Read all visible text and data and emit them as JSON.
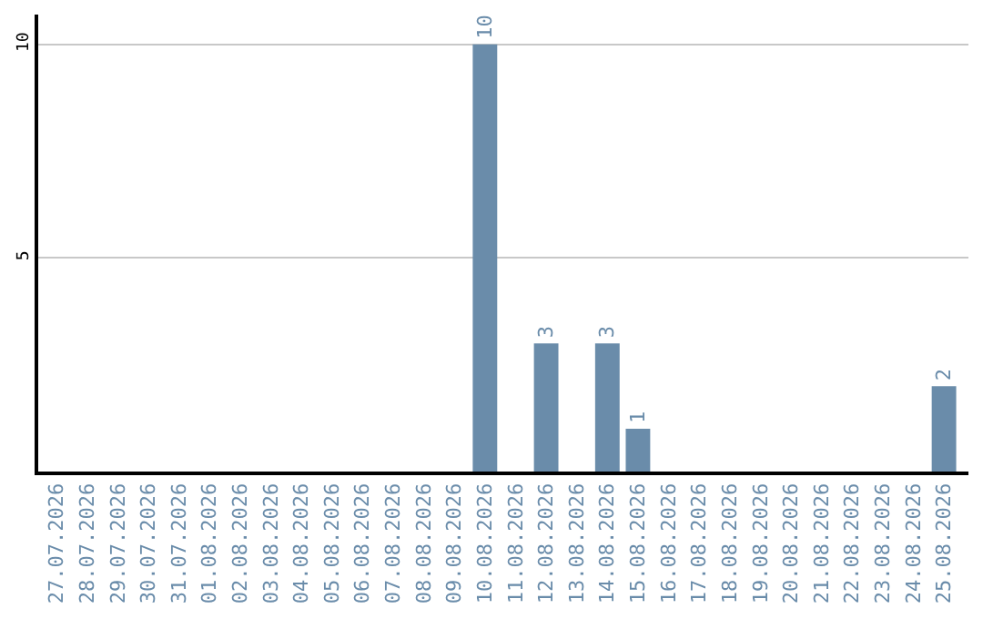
{
  "chart_data": {
    "type": "bar",
    "categories": [
      "27.07.2026",
      "28.07.2026",
      "29.07.2026",
      "30.07.2026",
      "31.07.2026",
      "01.08.2026",
      "02.08.2026",
      "03.08.2026",
      "04.08.2026",
      "05.08.2026",
      "06.08.2026",
      "07.08.2026",
      "08.08.2026",
      "09.08.2026",
      "10.08.2026",
      "11.08.2026",
      "12.08.2026",
      "13.08.2026",
      "14.08.2026",
      "15.08.2026",
      "16.08.2026",
      "17.08.2026",
      "18.08.2026",
      "19.08.2026",
      "20.08.2026",
      "21.08.2026",
      "22.08.2026",
      "23.08.2026",
      "24.08.2026",
      "25.08.2026"
    ],
    "values": [
      0,
      0,
      0,
      0,
      0,
      0,
      0,
      0,
      0,
      0,
      0,
      0,
      0,
      0,
      10,
      0,
      3,
      0,
      3,
      1,
      0,
      0,
      0,
      0,
      0,
      0,
      0,
      0,
      0,
      2
    ],
    "value_labels": [
      null,
      null,
      null,
      null,
      null,
      null,
      null,
      null,
      null,
      null,
      null,
      null,
      null,
      null,
      "10",
      null,
      "3",
      null,
      "3",
      "1",
      null,
      null,
      null,
      null,
      null,
      null,
      null,
      null,
      null,
      "2"
    ],
    "color": "#6a8caa",
    "ylim": [
      0,
      10.7
    ],
    "yticks": [
      5,
      10
    ],
    "grid": "y",
    "legend": false
  }
}
